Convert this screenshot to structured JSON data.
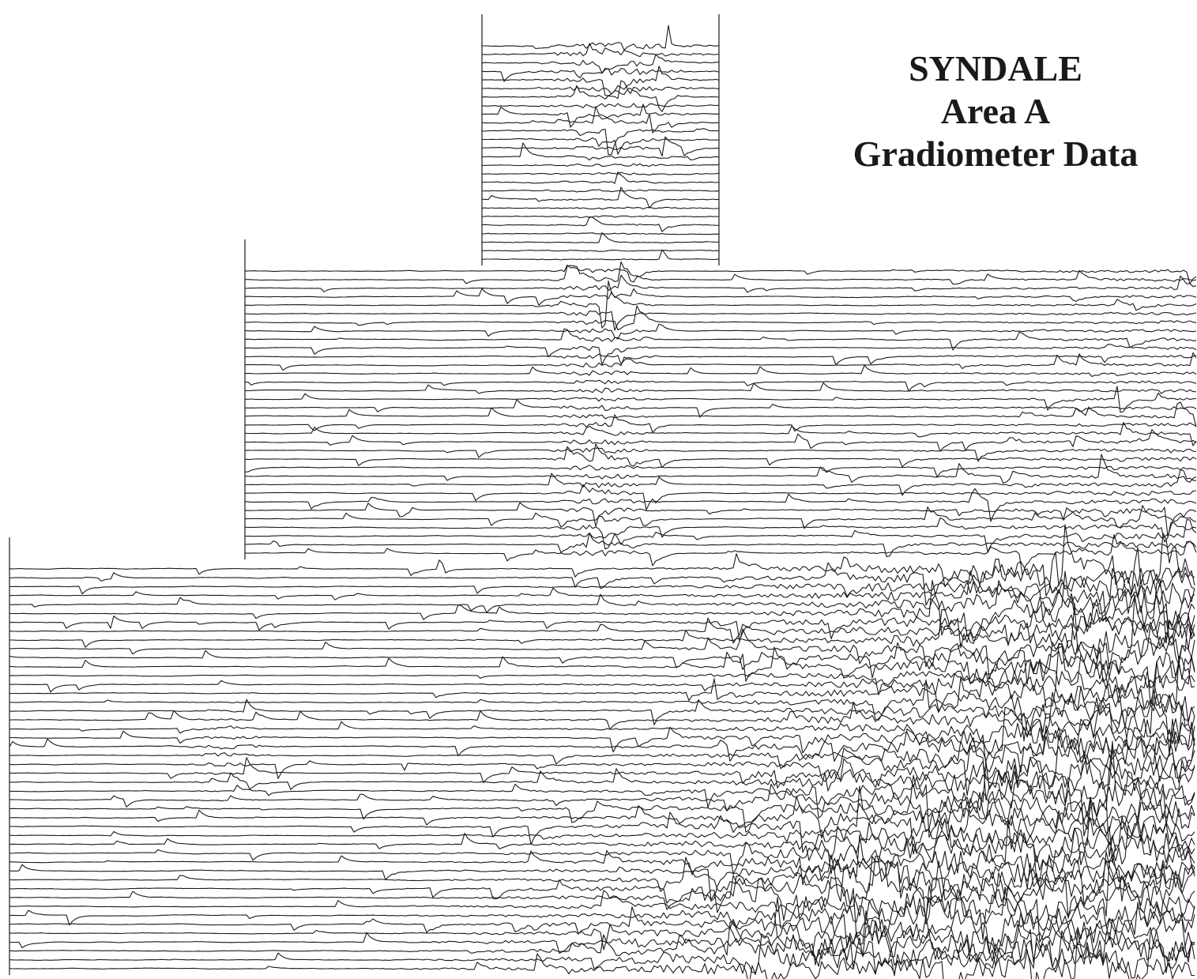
{
  "chart_data": {
    "type": "line",
    "plot_style": "trace-plot",
    "axes_shown": false,
    "grid": false,
    "legend": "none",
    "line_color": "#1a1a1a",
    "background_color": "#ffffff",
    "title_lines": [
      "SYNDALE",
      "Area A",
      "Gradiometer Data"
    ],
    "title_placement": "top-right",
    "blocks": [
      {
        "name": "top",
        "traces": 26,
        "noise_level": 0.55
      },
      {
        "name": "middle",
        "traces": 34,
        "noise_level": 0.65
      },
      {
        "name": "bottom",
        "traces": 46,
        "noise_level": 0.8
      }
    ]
  }
}
